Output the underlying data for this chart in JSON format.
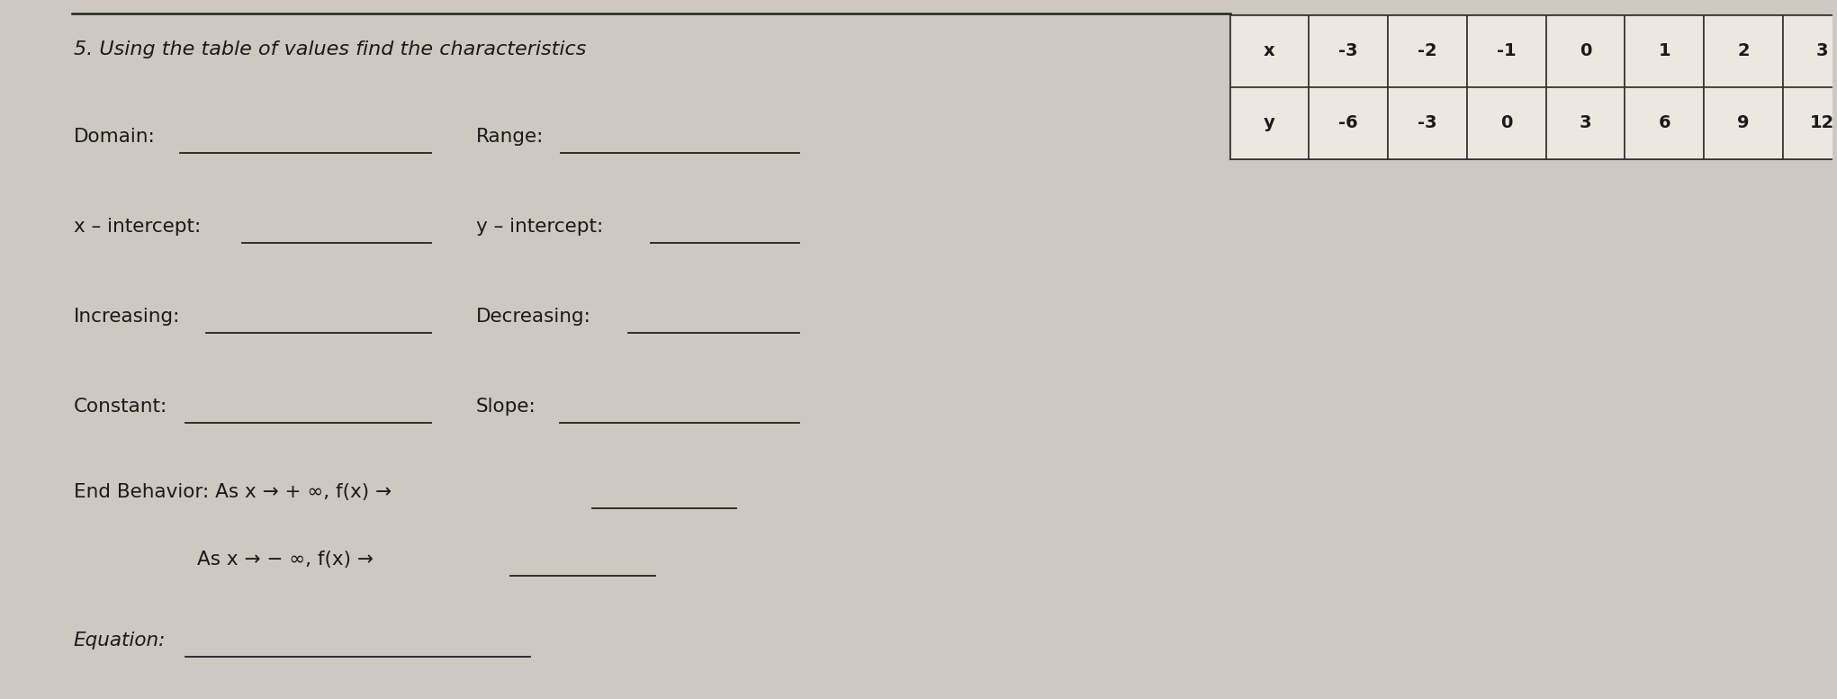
{
  "background_color": "#cdc9c0",
  "title": "5. Using the table of values find the characteristics",
  "title_fontsize": 16,
  "table": {
    "x_vals": [
      "-3",
      "-2",
      "-1",
      "0",
      "1",
      "2",
      "3"
    ],
    "y_vals": [
      "-6",
      "-3",
      "0",
      "3",
      "6",
      "9",
      "12"
    ],
    "row_labels": [
      "x",
      "y"
    ]
  },
  "font_color": "#1a1a1a",
  "line_color": "#222222",
  "label_fontsize": 15.5,
  "eq_fontsize": 15.5
}
